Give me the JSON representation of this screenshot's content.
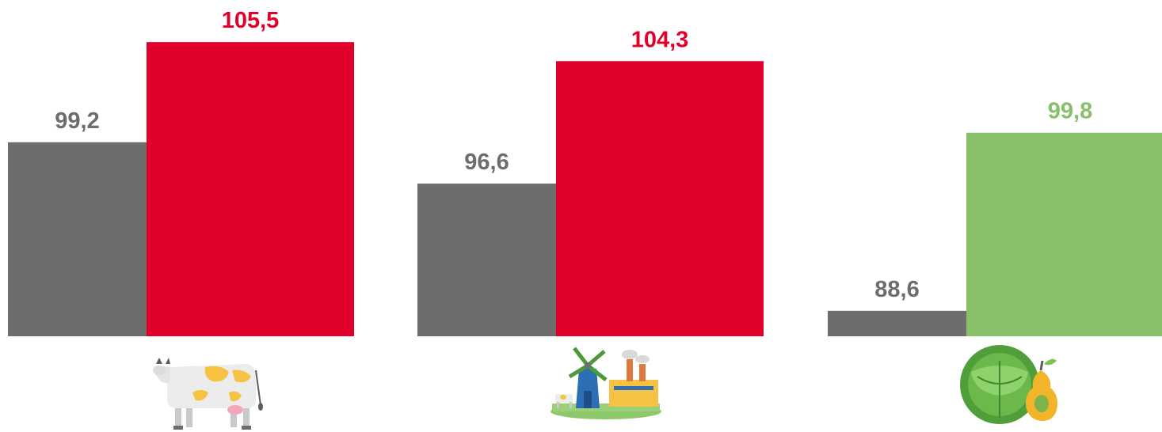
{
  "chart_data": {
    "type": "bar",
    "baseline": 87.0,
    "groups": [
      {
        "icon": "cow-icon",
        "bars": [
          {
            "value": 99.2,
            "label": "99,2",
            "color": "#6d6d6d",
            "label_color": "#6d6d6d"
          },
          {
            "value": 105.5,
            "label": "105,5",
            "color": "#e0002a",
            "label_color": "#e0002a"
          }
        ]
      },
      {
        "icon": "farm-windmill-factory-icon",
        "bars": [
          {
            "value": 96.6,
            "label": "96,6",
            "color": "#6d6d6d",
            "label_color": "#6d6d6d"
          },
          {
            "value": 104.3,
            "label": "104,3",
            "color": "#e0002a",
            "label_color": "#e0002a"
          }
        ]
      },
      {
        "icon": "cabbage-pear-icon",
        "bars": [
          {
            "value": 88.6,
            "label": "88,6",
            "color": "#6d6d6d",
            "label_color": "#6d6d6d"
          },
          {
            "value": 99.8,
            "label": "99,8",
            "color": "#88bf6a",
            "label_color": "#88bf6a"
          }
        ]
      }
    ]
  }
}
